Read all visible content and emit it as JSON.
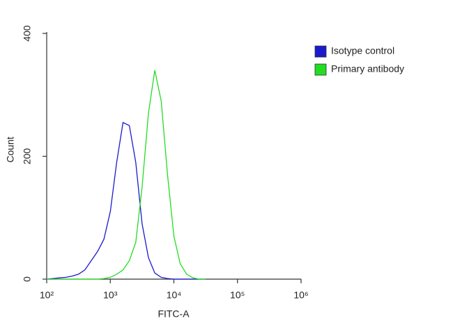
{
  "chart_data": {
    "type": "line",
    "x_label": "FITC-A",
    "y_label": "Count",
    "xscale": "log",
    "x": [
      100,
      126,
      158,
      200,
      251,
      316,
      398,
      501,
      631,
      794,
      1000,
      1259,
      1585,
      1995,
      2512,
      3162,
      3981,
      5012,
      6310,
      7943,
      10000,
      12589,
      15849,
      19953,
      25119,
      31623
    ],
    "series": [
      {
        "name": "Isotype control",
        "color": "#1a1acc",
        "values": [
          0,
          1,
          2,
          3,
          5,
          8,
          15,
          30,
          45,
          65,
          110,
          190,
          255,
          250,
          190,
          90,
          35,
          10,
          3,
          1,
          0,
          0,
          0,
          0,
          0,
          0
        ]
      },
      {
        "name": "Primary antibody",
        "color": "#22dd22",
        "values": [
          0,
          0,
          0,
          0,
          0,
          0,
          0,
          0,
          0,
          1,
          3,
          8,
          15,
          30,
          60,
          150,
          270,
          340,
          290,
          170,
          70,
          25,
          8,
          2,
          0,
          0
        ]
      }
    ],
    "xlim": [
      100,
      1000000
    ],
    "xticks": [
      {
        "value": 100,
        "label": "10²"
      },
      {
        "value": 1000,
        "label": "10³"
      },
      {
        "value": 10000,
        "label": "10⁴"
      },
      {
        "value": 100000,
        "label": "10⁵"
      },
      {
        "value": 1000000,
        "label": "10⁶"
      }
    ],
    "ylim": [
      0,
      400
    ],
    "yticks": [
      0,
      200,
      400
    ],
    "legend": "upper right"
  }
}
